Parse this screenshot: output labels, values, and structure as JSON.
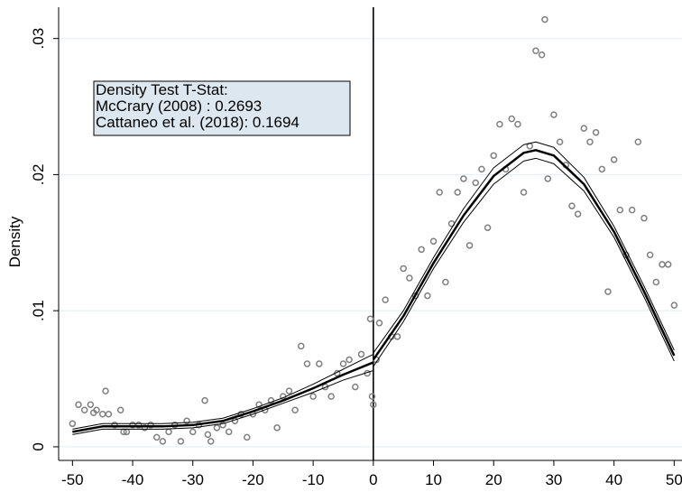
{
  "chart_data": {
    "type": "scatter",
    "y_label": "Density",
    "annotation": [
      "Density Test T-Stat:",
      "McCrary (2008) : 0.2693",
      "Cattaneo et al. (2018): 0.1694"
    ],
    "xlim": [
      -52.3,
      51.3
    ],
    "ylim": [
      -0.001,
      0.0323
    ],
    "xticks": [
      -50,
      -40,
      -30,
      -20,
      -10,
      0,
      10,
      20,
      30,
      40,
      50
    ],
    "yticks": [
      0,
      {
        "value": 0.01,
        "label": ".01"
      },
      {
        "value": 0.02,
        "label": ".02"
      },
      {
        "value": 0.03,
        "label": ".03"
      }
    ],
    "grid": true,
    "xline": 0,
    "series": [
      {
        "type": "scatter",
        "color": "#7f7f7f",
        "x": [
          -50,
          -49,
          -48,
          -47,
          -46.5,
          -46,
          -45,
          -44.5,
          -44,
          -43,
          -42,
          -41.5,
          -41,
          -40,
          -39,
          -38,
          -37,
          -36,
          -35,
          -34,
          -33,
          -32,
          -31,
          -30,
          -29,
          -28,
          -27.5,
          -27,
          -26,
          -25,
          -24,
          -23,
          -22,
          -21,
          -20,
          -19,
          -18,
          -17,
          -16,
          -15,
          -14,
          -13,
          -12,
          -11,
          -10,
          -9,
          -8,
          -7,
          -6,
          -5,
          -4,
          -3,
          -2,
          -1,
          -0.5,
          -0.2,
          0,
          0.5,
          1,
          2,
          3,
          4,
          5,
          6,
          7,
          8,
          9,
          10,
          11,
          12,
          13,
          14,
          15,
          16,
          17,
          18,
          19,
          20,
          21,
          22,
          23,
          24,
          25,
          26,
          27,
          28,
          28.5,
          29,
          30,
          31,
          32,
          33,
          34,
          35,
          36,
          37,
          38,
          39,
          40,
          41,
          42,
          43,
          44,
          45,
          46,
          47,
          48,
          49,
          50
        ],
        "values": [
          0.0017,
          0.0031,
          0.0027,
          0.0031,
          0.0025,
          0.0027,
          0.0024,
          0.0041,
          0.0024,
          0.0016,
          0.0027,
          0.0011,
          0.0011,
          0.0016,
          0.0016,
          0.0014,
          0.0016,
          0.0007,
          0.0004,
          0.0011,
          0.0016,
          0.0004,
          0.0019,
          0.0011,
          0.0016,
          0.0034,
          0.0009,
          0.0004,
          0.0014,
          0.0016,
          0.0011,
          0.0019,
          0.0024,
          0.0007,
          0.0024,
          0.0031,
          0.0027,
          0.0034,
          0.0014,
          0.0037,
          0.0041,
          0.0027,
          0.0074,
          0.0061,
          0.0037,
          0.0061,
          0.0044,
          0.0037,
          0.0054,
          0.0061,
          0.0064,
          0.0044,
          0.0068,
          0.0054,
          0.0094,
          0.0037,
          0.0031,
          0.0064,
          0.0091,
          0.0108,
          0.0081,
          0.0081,
          0.0131,
          0.0124,
          0.0111,
          0.0145,
          0.0111,
          0.0151,
          0.0187,
          0.0121,
          0.0164,
          0.0187,
          0.0197,
          0.0148,
          0.0194,
          0.0204,
          0.0161,
          0.0214,
          0.0237,
          0.0204,
          0.0241,
          0.0237,
          0.0187,
          0.0221,
          0.0291,
          0.0288,
          0.0314,
          0.0197,
          0.0244,
          0.0224,
          0.0207,
          0.0177,
          0.0171,
          0.0234,
          0.0224,
          0.0231,
          0.0204,
          0.0114,
          0.0211,
          0.0174,
          0.0141,
          0.0174,
          0.0224,
          0.0168,
          0.0141,
          0.0121,
          0.0134,
          0.0134,
          0.0104
        ]
      },
      {
        "type": "line",
        "color": "#000000",
        "width": 2.5,
        "x": [
          -50,
          -45,
          -40,
          -35,
          -30,
          -25,
          -20,
          -15,
          -10,
          -5,
          0
        ],
        "values": [
          0.0011,
          0.0015,
          0.0015,
          0.0015,
          0.0016,
          0.0019,
          0.0026,
          0.0034,
          0.0043,
          0.0053,
          0.0062
        ]
      },
      {
        "type": "line",
        "color": "#000000",
        "width": 1,
        "x": [
          -50,
          -45,
          -40,
          -35,
          -30,
          -25,
          -20,
          -15,
          -10,
          -5,
          0
        ],
        "values": [
          0.0013,
          0.0017,
          0.0017,
          0.0017,
          0.0018,
          0.0021,
          0.0028,
          0.0036,
          0.0046,
          0.0057,
          0.0068
        ]
      },
      {
        "type": "line",
        "color": "#000000",
        "width": 1,
        "x": [
          -50,
          -45,
          -40,
          -35,
          -30,
          -25,
          -20,
          -15,
          -10,
          -5,
          0
        ],
        "values": [
          0.0009,
          0.0013,
          0.0013,
          0.0013,
          0.0014,
          0.0017,
          0.0024,
          0.0032,
          0.004,
          0.0049,
          0.0056
        ]
      },
      {
        "type": "line",
        "color": "#000000",
        "width": 2.5,
        "x": [
          0,
          5,
          10,
          15,
          20,
          25,
          27,
          30,
          35,
          40,
          45,
          50
        ],
        "values": [
          0.0064,
          0.0096,
          0.0135,
          0.017,
          0.0199,
          0.0216,
          0.0218,
          0.0214,
          0.0193,
          0.0158,
          0.0114,
          0.0067
        ]
      },
      {
        "type": "line",
        "color": "#000000",
        "width": 1,
        "x": [
          0,
          5,
          10,
          15,
          20,
          25,
          27,
          30,
          35,
          40,
          45,
          50
        ],
        "values": [
          0.0069,
          0.01,
          0.0139,
          0.0175,
          0.0205,
          0.0222,
          0.0224,
          0.022,
          0.0198,
          0.0162,
          0.0118,
          0.0071
        ]
      },
      {
        "type": "line",
        "color": "#000000",
        "width": 1,
        "x": [
          0,
          5,
          10,
          15,
          20,
          25,
          27,
          30,
          35,
          40,
          45,
          50
        ],
        "values": [
          0.0059,
          0.0092,
          0.0131,
          0.0165,
          0.0193,
          0.021,
          0.0212,
          0.0208,
          0.0188,
          0.0154,
          0.011,
          0.0063
        ]
      }
    ]
  }
}
